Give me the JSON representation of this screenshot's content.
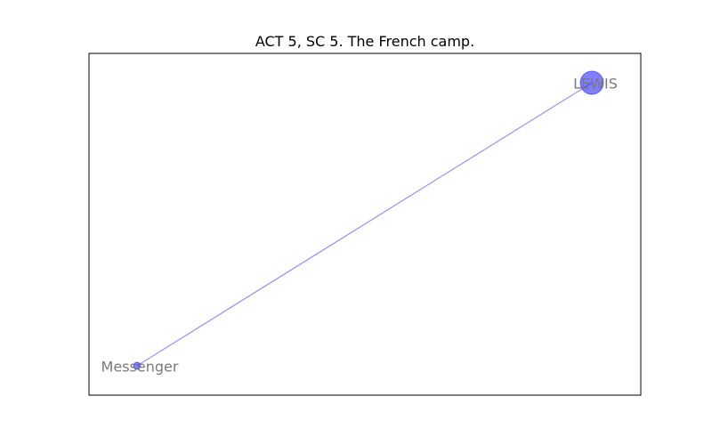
{
  "title": "ACT 5, SC 5. The French camp.",
  "colors": {
    "node_fill": "#0000ff",
    "edge": "#0000ff",
    "label": "#7a7a7a",
    "frame": "#000000"
  },
  "nodes": [
    {
      "id": "lewis",
      "label": "LEWIS",
      "weight": 2
    },
    {
      "id": "messenger",
      "label": "Messenger",
      "weight": 1
    }
  ],
  "edges": [
    {
      "source": "lewis",
      "target": "messenger"
    }
  ]
}
